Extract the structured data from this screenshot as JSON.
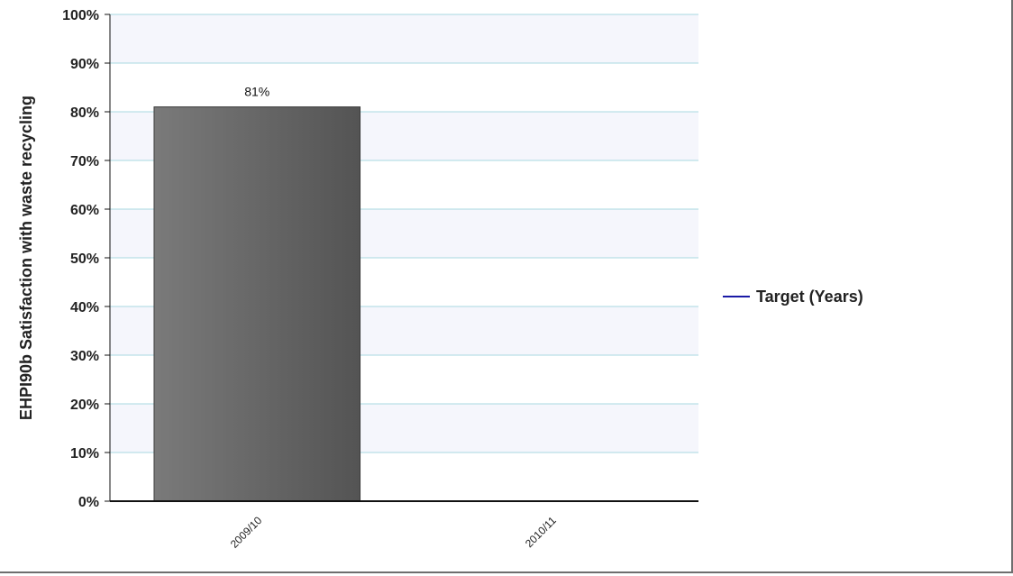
{
  "chart_data": {
    "type": "bar",
    "title": "",
    "xlabel": "",
    "ylabel": "EHPI90b Satisfaction with waste recycling",
    "categories": [
      "2009/10",
      "2010/11"
    ],
    "values": [
      81,
      null
    ],
    "data_labels": [
      "81%",
      ""
    ],
    "ylim": [
      0,
      100
    ],
    "y_ticks": [
      0,
      10,
      20,
      30,
      40,
      50,
      60,
      70,
      80,
      90,
      100
    ],
    "y_tick_labels": [
      "0%",
      "10%",
      "20%",
      "30%",
      "40%",
      "50%",
      "60%",
      "70%",
      "80%",
      "90%",
      "100%"
    ],
    "grid": true,
    "legend": {
      "placement": "right",
      "entries": [
        {
          "name": "Target (Years)",
          "color": "#1a1aa6"
        }
      ]
    },
    "colors": {
      "bar": "#5f5f5f",
      "gridline": "#a8d8e0",
      "band": "#f5f6fc",
      "axis": "#111111"
    }
  }
}
